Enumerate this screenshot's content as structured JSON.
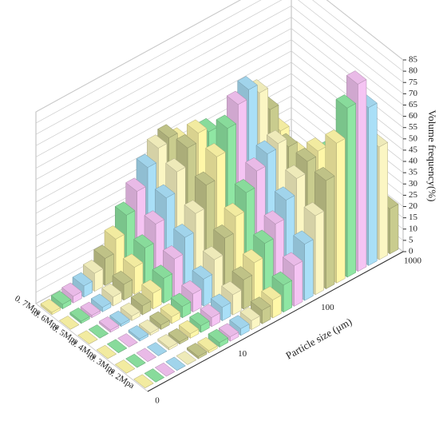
{
  "chart_data": {
    "type": "bar3d",
    "xlabel": "Particle size (μm)",
    "ylabel": "Volume frequency(%)",
    "xtick_labels": [
      "0",
      "10",
      "100",
      "1000"
    ],
    "ylim": [
      0,
      85
    ],
    "yticks": [
      0,
      5,
      10,
      15,
      20,
      25,
      30,
      35,
      40,
      45,
      50,
      55,
      60,
      65,
      70,
      75,
      80,
      85
    ],
    "grid": true,
    "colors": [
      "#fff7a8",
      "#8fe6a3",
      "#f5c4f3",
      "#a9dff7",
      "#fbf6c3",
      "#c9cc8e"
    ],
    "series": [
      {
        "name": "0. 2Mpa",
        "values": [
          0,
          0,
          0,
          0,
          0,
          1,
          1,
          2,
          2,
          3,
          4,
          6,
          8,
          12,
          18,
          25,
          35,
          48,
          62,
          75,
          83,
          70,
          50,
          20
        ]
      },
      {
        "name": "0. 3Mpa",
        "values": [
          0,
          0,
          0,
          0,
          1,
          1,
          2,
          3,
          4,
          6,
          9,
          13,
          18,
          24,
          30,
          38,
          45,
          50,
          52,
          48,
          40,
          30,
          18,
          8
        ]
      },
      {
        "name": "0. 4Mpa",
        "values": [
          0,
          0,
          0,
          1,
          1,
          2,
          3,
          5,
          8,
          12,
          18,
          25,
          32,
          40,
          47,
          52,
          54,
          50,
          44,
          36,
          26,
          16,
          8,
          3
        ]
      },
      {
        "name": "0. 5Mpa",
        "values": [
          0,
          0,
          1,
          1,
          2,
          4,
          7,
          11,
          17,
          24,
          32,
          42,
          52,
          62,
          70,
          74,
          70,
          60,
          48,
          34,
          20,
          10,
          4,
          1
        ]
      },
      {
        "name": "0. 6Mpa",
        "values": [
          0,
          1,
          1,
          2,
          4,
          7,
          12,
          18,
          26,
          35,
          44,
          52,
          56,
          54,
          48,
          40,
          32,
          24,
          16,
          10,
          5,
          2,
          1,
          0
        ]
      },
      {
        "name": "0. 7Mpa",
        "values": [
          1,
          2,
          3,
          5,
          8,
          12,
          18,
          26,
          34,
          42,
          48,
          50,
          46,
          38,
          28,
          20,
          13,
          8,
          4,
          2,
          1,
          0,
          0,
          0
        ]
      }
    ]
  }
}
